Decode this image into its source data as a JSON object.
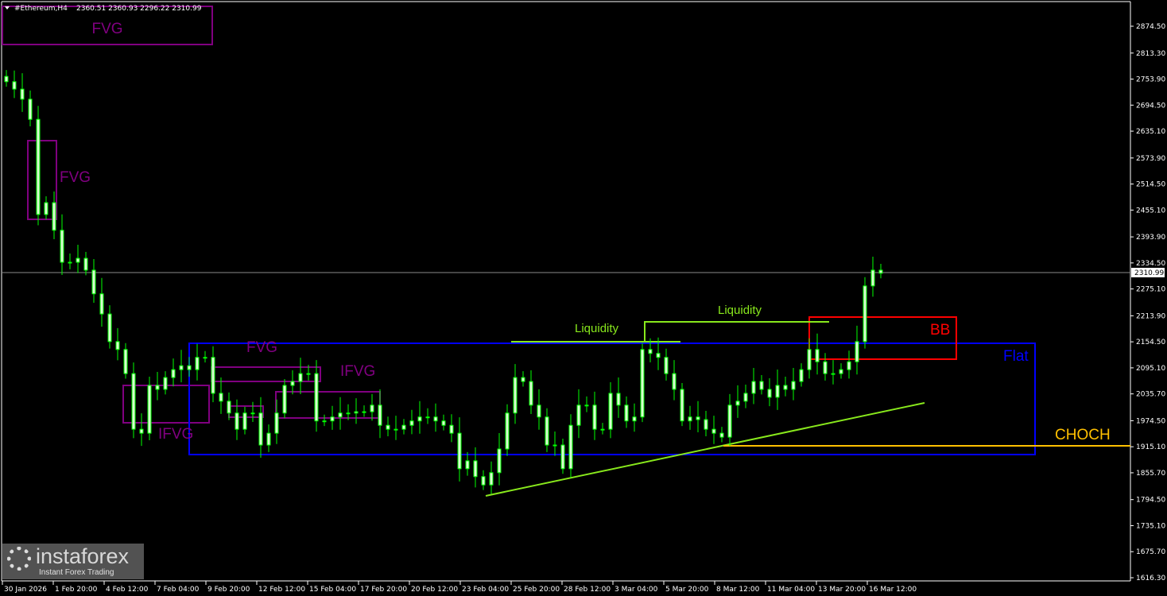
{
  "header": {
    "symbol": "#Ethereum,H4",
    "ohlc_readout": "2360.51 2360.93 2296.22 2310.99"
  },
  "watermark": {
    "brand": "instaforex",
    "tagline": "Instant Forex Trading"
  },
  "colors": {
    "candle": "#00ff00",
    "fvg": "#800080",
    "flat": "#0000ff",
    "liquidity": "#88e81c",
    "choch": "#ffc000",
    "bb": "#ff0000",
    "price_line": "#8a8a8a",
    "background": "#000000"
  },
  "annotations": {
    "fvg_top": "FVG",
    "fvg_left": "FVG",
    "ifvg_left": "IFVG",
    "fvg_mid": "FVG",
    "ifvg_mid": "IFVG",
    "flat": "Flat",
    "liquidity_1": "Liquidity",
    "liquidity_2": "Liquidity",
    "choch": "CHOCH",
    "bb": "BB"
  },
  "chart_data": {
    "type": "candlestick",
    "symbol": "#Ethereum",
    "timeframe": "H4",
    "current_price": 2310.99,
    "ylim": [
      1616.3,
      2874.5
    ],
    "y_ticks": [
      "2874.50",
      "2813.30",
      "2753.90",
      "2694.50",
      "2635.10",
      "2573.90",
      "2514.50",
      "2455.10",
      "2393.90",
      "2334.50",
      "2275.10",
      "2213.90",
      "2154.50",
      "2095.10",
      "2035.70",
      "1974.50",
      "1915.10",
      "1855.70",
      "1794.50",
      "1735.10",
      "1675.70",
      "1616.30"
    ],
    "x_ticks": [
      "30 Jan 2026",
      "1 Feb 20:00",
      "4 Feb 12:00",
      "7 Feb 04:00",
      "9 Feb 20:00",
      "12 Feb 12:00",
      "15 Feb 04:00",
      "17 Feb 20:00",
      "20 Feb 12:00",
      "23 Feb 04:00",
      "25 Feb 20:00",
      "28 Feb 12:00",
      "3 Mar 04:00",
      "5 Mar 20:00",
      "8 Mar 12:00",
      "11 Mar 04:00",
      "13 Mar 20:00",
      "16 Mar 12:00"
    ],
    "first_open": 2760,
    "closes": [
      2748,
      2731,
      2708,
      2662,
      2445,
      2472,
      2409,
      2336,
      2336,
      2345,
      2318,
      2264,
      2218,
      2155,
      2137,
      2082,
      1955,
      1946,
      2055,
      2046,
      2073,
      2091,
      2100,
      2091,
      2119,
      2119,
      2037,
      2019,
      1992,
      1955,
      1992,
      1992,
      1919,
      1946,
      1992,
      2055,
      2064,
      2082,
      2082,
      1974,
      1974,
      1983,
      1992,
      1992,
      1995,
      1995,
      2010,
      1964,
      1955,
      1955,
      1964,
      1974,
      1983,
      1983,
      1974,
      1964,
      1946,
      1865,
      1883,
      1847,
      1828,
      1856,
      1910,
      1992,
      2073,
      2064,
      2010,
      1983,
      1919,
      1919,
      1865,
      1964,
      2010,
      2010,
      1955,
      1955,
      2037,
      2010,
      1974,
      1983,
      2137,
      2128,
      2119,
      2082,
      2046,
      1974,
      1983,
      1977,
      1955,
      1946,
      1937,
      2010,
      2019,
      2037,
      2064,
      2046,
      2028,
      2055,
      2046,
      2064,
      2091,
      2137,
      2109,
      2082,
      2082,
      2091,
      2109,
      2155,
      2282,
      2318,
      2311
    ],
    "grid": false
  }
}
